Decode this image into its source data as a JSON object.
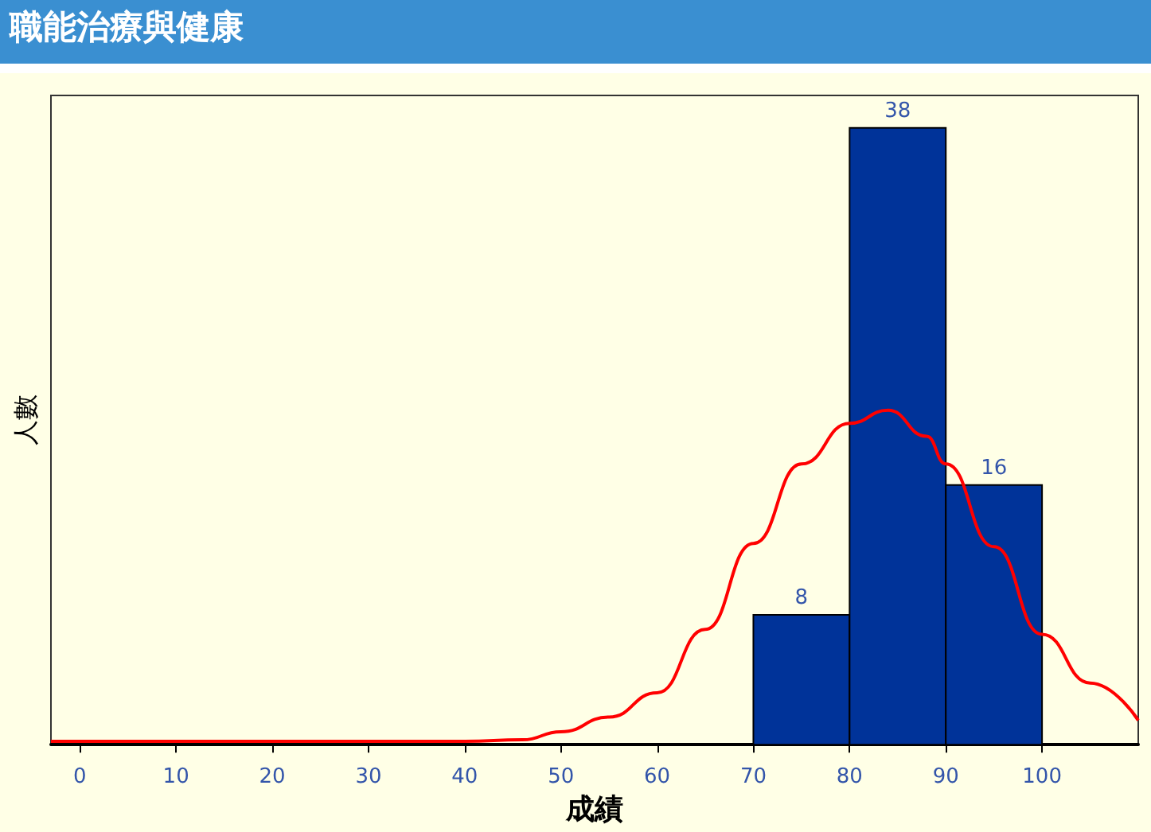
{
  "chart_data": {
    "type": "histogram",
    "title": "職能治療與健康",
    "xlabel": "成績",
    "ylabel": "人數",
    "bins": [
      70,
      80,
      90,
      100
    ],
    "values": [
      8,
      38,
      16
    ],
    "color": "#003399",
    "value_labels": [
      "8",
      "38",
      "16"
    ],
    "series": [
      {
        "type": "line",
        "color": "#ff0000",
        "x": [
          -3,
          40,
          46,
          50,
          55,
          60,
          65,
          70,
          75,
          80,
          84,
          88,
          90,
          95,
          100,
          105,
          110
        ],
        "values": [
          0.2,
          0.2,
          0.3,
          0.8,
          1.7,
          3.2,
          7.1,
          12.4,
          17.3,
          19.8,
          20.6,
          19,
          17.3,
          12.2,
          6.8,
          3.8,
          1.5
        ]
      }
    ],
    "xlim": [
      -3,
      110
    ],
    "xticks": [
      0,
      10,
      20,
      30,
      40,
      50,
      60,
      70,
      80,
      90,
      100
    ],
    "grid": false
  }
}
